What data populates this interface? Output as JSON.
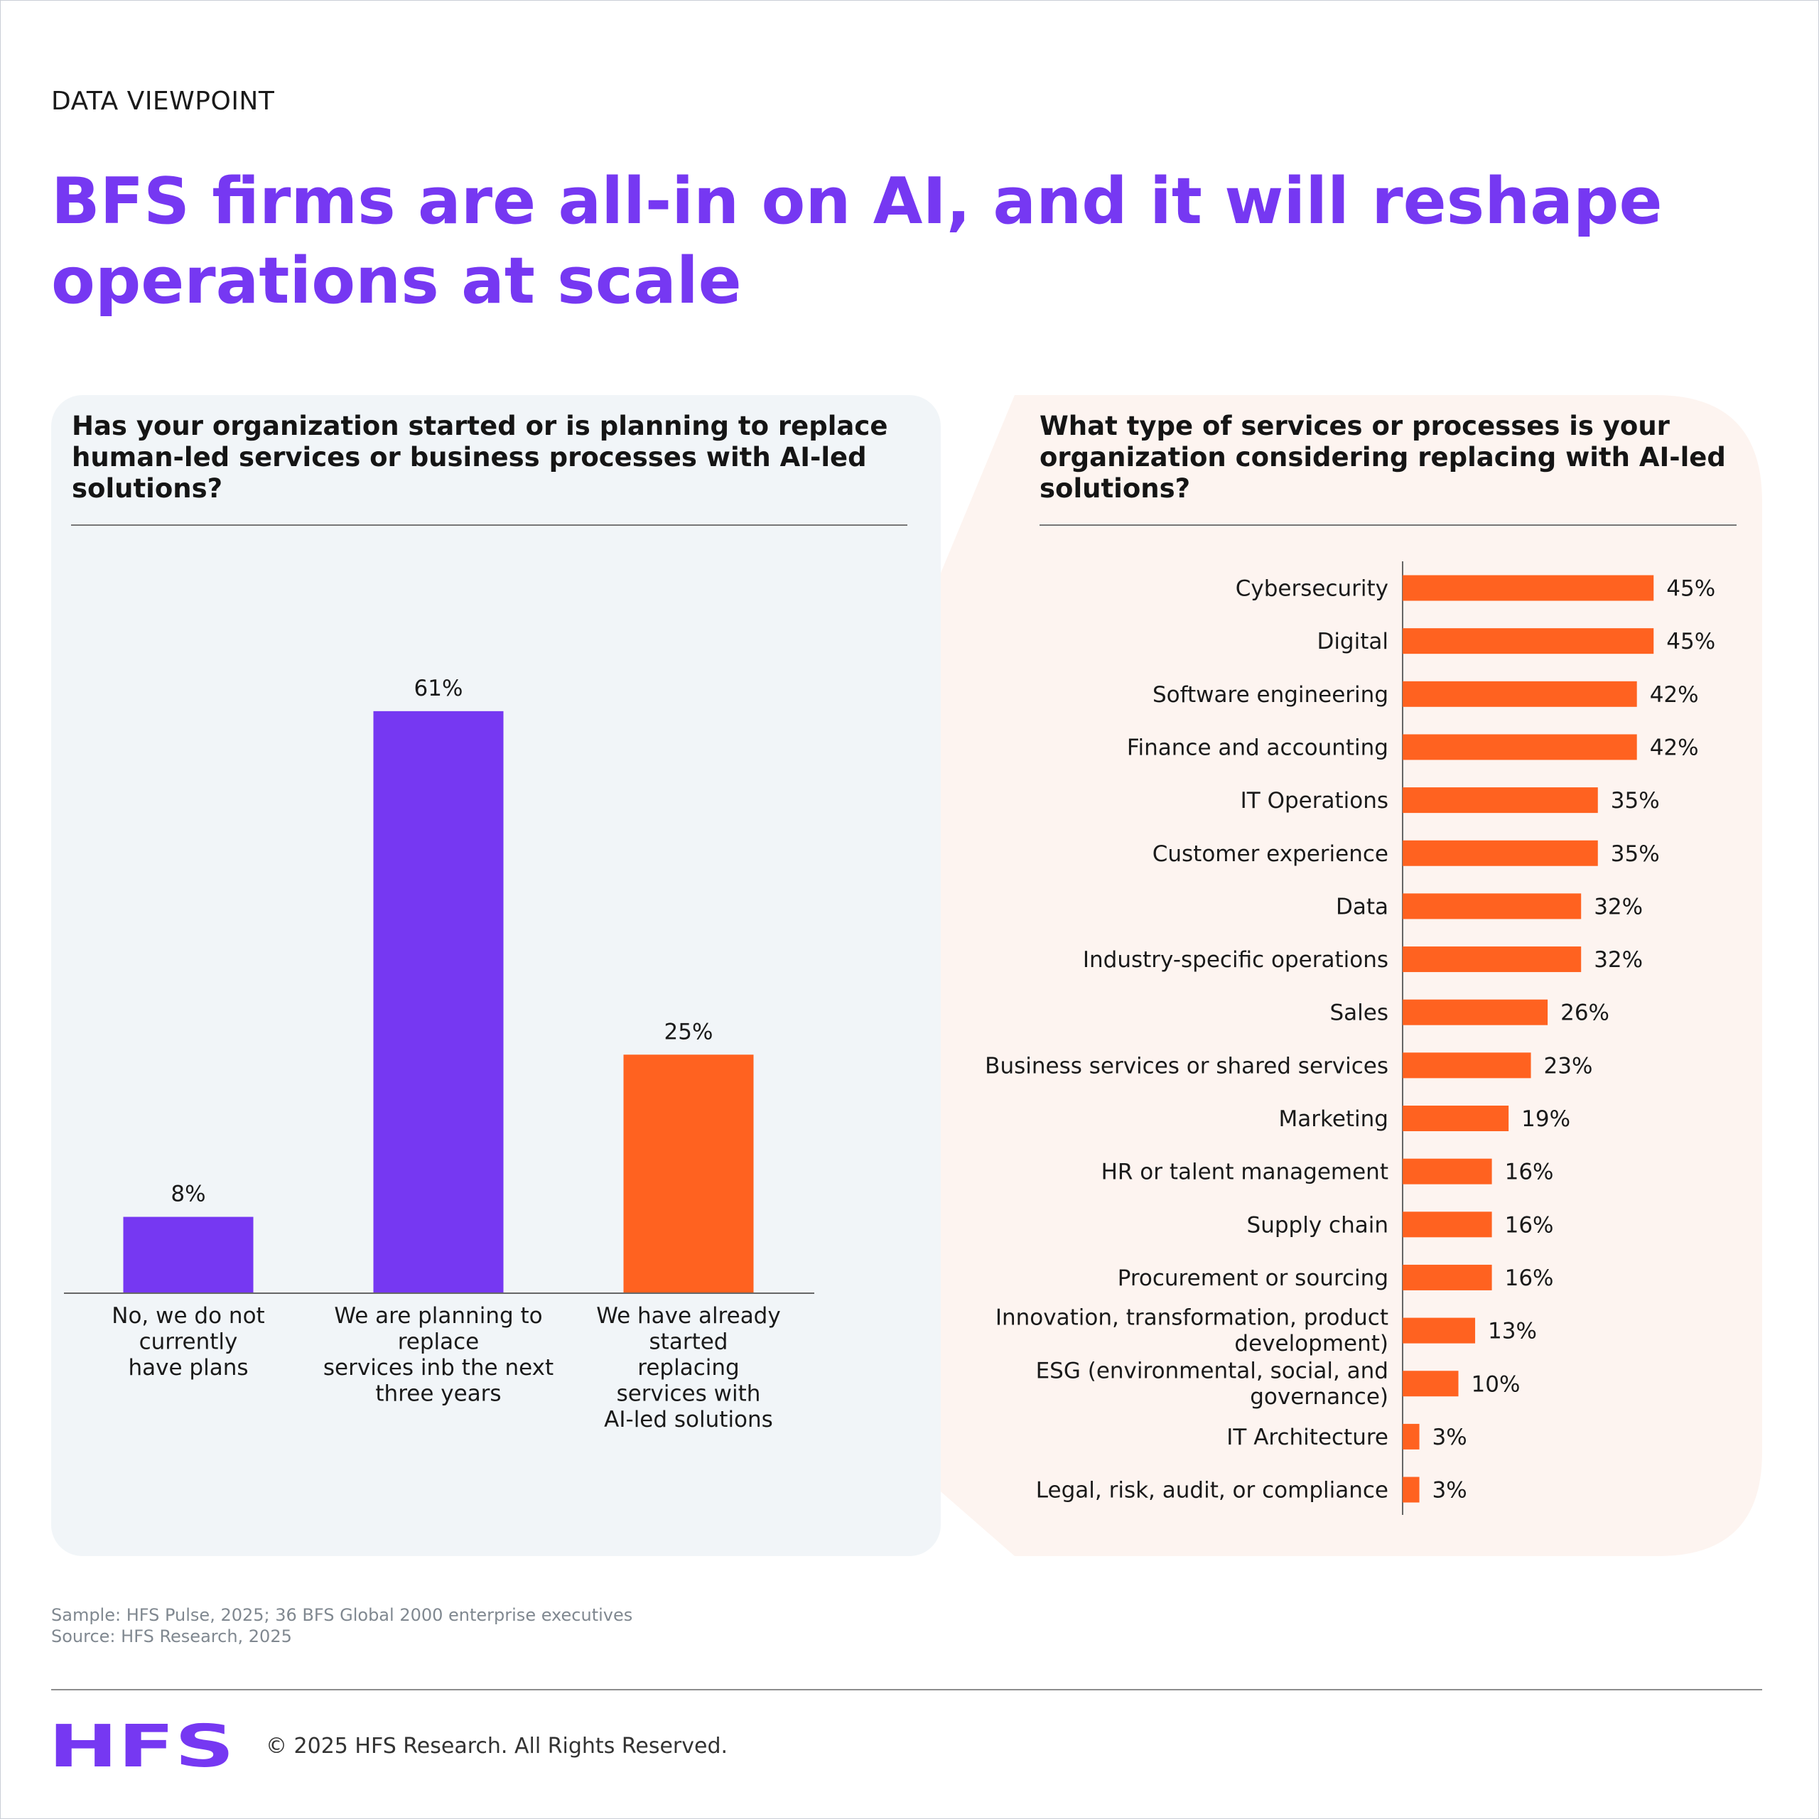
{
  "header": {
    "eyebrow": "DATA VIEWPOINT",
    "title_line1": "BFS firms are all-in on AI, and it will reshape",
    "title_line2": "operations at scale"
  },
  "colors": {
    "purple": "#7638f2",
    "orange": "#ff6220",
    "left_panel": "#f1f5f8",
    "right_panel": "#fdf4f0"
  },
  "chart_data": [
    {
      "type": "bar",
      "title_lines": [
        "Has your organization started or is planning to replace",
        "human-led services or business processes with AI-led",
        "solutions?"
      ],
      "categories": [
        [
          "No, we do not",
          "currently",
          "have plans"
        ],
        [
          "We are planning to",
          "replace",
          "services inb the next",
          "three years"
        ],
        [
          "We have already",
          "started",
          "replacing",
          "services with",
          "AI-led solutions"
        ]
      ],
      "values": [
        8,
        61,
        25
      ],
      "value_labels": [
        "8%",
        "61%",
        "25%"
      ],
      "bar_colors": [
        "#7638f2",
        "#7638f2",
        "#ff6220"
      ],
      "ylim": [
        0,
        70
      ],
      "grid": false
    },
    {
      "type": "bar",
      "orientation": "horizontal",
      "title_lines": [
        "What type of services or processes is your",
        "organization considering replacing with AI-led",
        "solutions?"
      ],
      "categories": [
        [
          "Cybersecurity"
        ],
        [
          "Digital"
        ],
        [
          "Software engineering"
        ],
        [
          "Finance and accounting"
        ],
        [
          "IT Operations"
        ],
        [
          "Customer experience"
        ],
        [
          "Data"
        ],
        [
          "Industry-specific operations"
        ],
        [
          "Sales"
        ],
        [
          "Business services or shared services"
        ],
        [
          "Marketing"
        ],
        [
          "HR or talent management"
        ],
        [
          "Supply chain"
        ],
        [
          "Procurement or sourcing"
        ],
        [
          "Innovation, transformation, product",
          "development)"
        ],
        [
          "ESG (environmental, social, and",
          "governance)"
        ],
        [
          "IT Architecture"
        ],
        [
          "Legal, risk, audit, or compliance"
        ]
      ],
      "values": [
        45,
        45,
        42,
        42,
        35,
        35,
        32,
        32,
        26,
        23,
        19,
        16,
        16,
        16,
        13,
        10,
        3,
        3
      ],
      "value_labels": [
        "45%",
        "45%",
        "42%",
        "42%",
        "35%",
        "35%",
        "32%",
        "32%",
        "26%",
        "23%",
        "19%",
        "16%",
        "16%",
        "16%",
        "13%",
        "10%",
        "3%",
        "3%"
      ],
      "bar_color": "#ff6220",
      "xlim": [
        0,
        50
      ],
      "grid": false
    }
  ],
  "footer": {
    "sample": "Sample: HFS Pulse, 2025; 36 BFS Global 2000 enterprise executives",
    "source": "Source: HFS Research, 2025",
    "logo": "HFS",
    "copyright": "© 2025 HFS Research. All Rights Reserved."
  }
}
